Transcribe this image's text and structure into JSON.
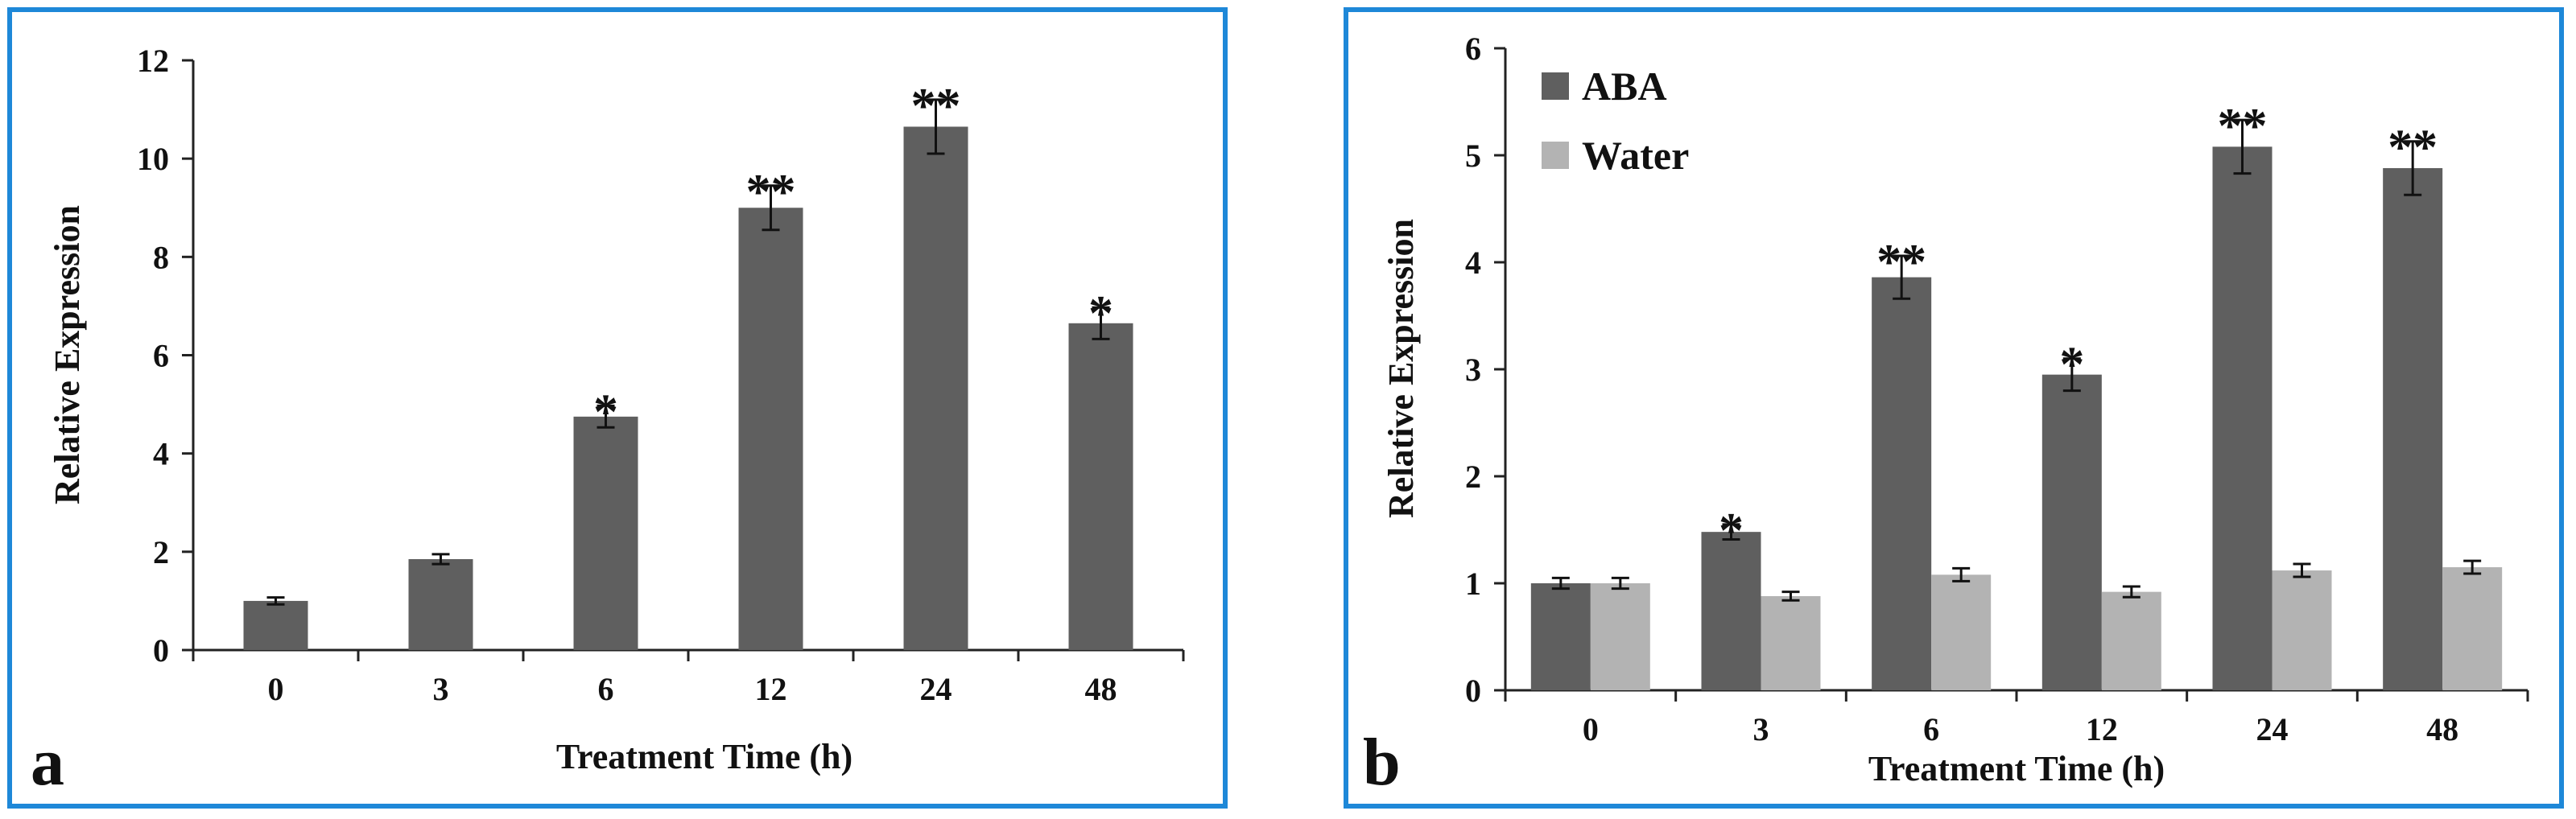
{
  "frame_color": "#1e88d8",
  "chart_data": [
    {
      "type": "bar",
      "panel_label": "a",
      "title": "",
      "xlabel": "Treatment Time (h)",
      "ylabel": "Relative Expression",
      "categories": [
        "0",
        "3",
        "6",
        "12",
        "24",
        "48"
      ],
      "ylim": [
        0,
        12
      ],
      "yticks": [
        "0",
        "2",
        "4",
        "6",
        "8",
        "10",
        "12"
      ],
      "grid": false,
      "series": [
        {
          "name": "",
          "color": "#5f5f5f",
          "values": [
            1.0,
            1.85,
            4.75,
            9.0,
            10.65,
            6.65
          ],
          "errors": [
            0.07,
            0.1,
            0.22,
            0.45,
            0.55,
            0.32
          ],
          "significance": [
            "",
            "",
            "*",
            "**",
            "**",
            "*"
          ]
        }
      ]
    },
    {
      "type": "bar",
      "panel_label": "b",
      "title": "",
      "xlabel": "Treatment Time (h)",
      "ylabel": "Relative Expression",
      "categories": [
        "0",
        "3",
        "6",
        "12",
        "24",
        "48"
      ],
      "ylim": [
        0,
        6
      ],
      "yticks": [
        "0",
        "1",
        "2",
        "3",
        "4",
        "5",
        "6"
      ],
      "grid": false,
      "legend_position": "top-left",
      "series": [
        {
          "name": "ABA",
          "color": "#5f5f5f",
          "values": [
            1.0,
            1.48,
            3.86,
            2.95,
            5.08,
            4.88
          ],
          "errors": [
            0.05,
            0.07,
            0.2,
            0.15,
            0.25,
            0.25
          ],
          "significance": [
            "",
            "*",
            "**",
            "*",
            "**",
            "**"
          ]
        },
        {
          "name": "Water",
          "color": "#b3b3b3",
          "values": [
            1.0,
            0.88,
            1.08,
            0.92,
            1.12,
            1.15
          ],
          "errors": [
            0.05,
            0.04,
            0.06,
            0.05,
            0.06,
            0.06
          ],
          "significance": [
            "",
            "",
            "",
            "",
            "",
            ""
          ]
        }
      ]
    }
  ]
}
